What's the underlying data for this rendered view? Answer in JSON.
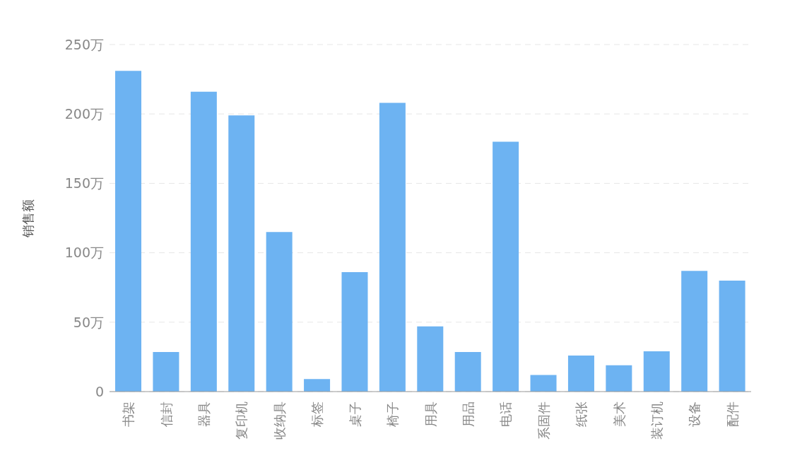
{
  "chart_data": {
    "type": "bar",
    "ylabel": "销售额",
    "categories": [
      "书架",
      "信封",
      "器具",
      "复印机",
      "收纳具",
      "标签",
      "桌子",
      "椅子",
      "用具",
      "用品",
      "电话",
      "系固件",
      "纸张",
      "美术",
      "装订机",
      "设备",
      "配件"
    ],
    "values": [
      231,
      28.5,
      216,
      199,
      115,
      9,
      86,
      208,
      47,
      28.5,
      180,
      12,
      26,
      19,
      29,
      87,
      80
    ],
    "color": "#6db3f2",
    "ylim": [
      0,
      250
    ],
    "yticks": [
      0,
      {
        "value": 50,
        "label": "50万"
      },
      {
        "value": 100,
        "label": "100万"
      },
      {
        "value": 150,
        "label": "150万"
      },
      {
        "value": 200,
        "label": "200万"
      },
      {
        "value": 250,
        "label": "250万"
      }
    ],
    "grid": "y"
  }
}
